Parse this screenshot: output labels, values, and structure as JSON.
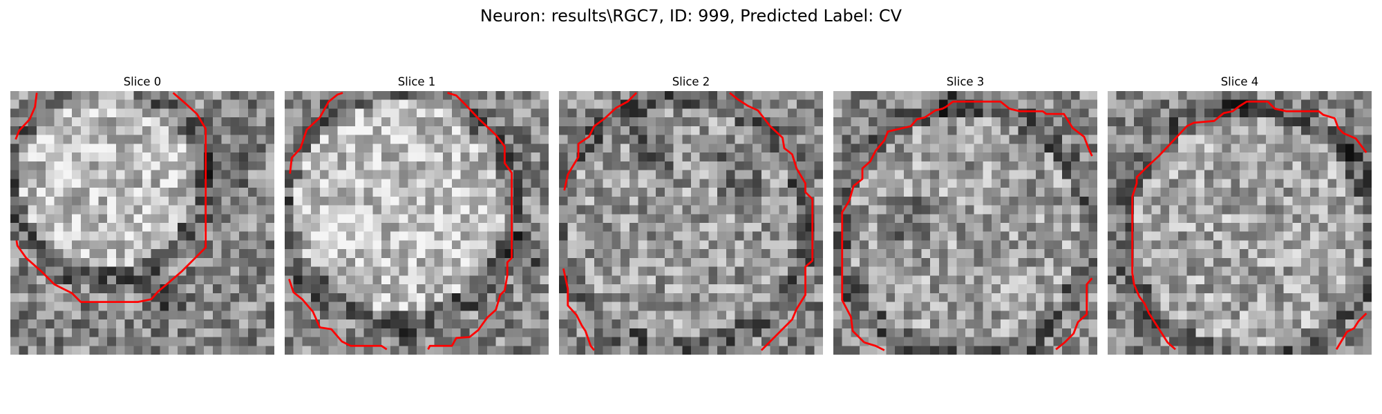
{
  "figure": {
    "title": "Neuron: results\\RGC7, ID: 999, Predicted Label: CV"
  },
  "panels": [
    {
      "title": "Slice 0"
    },
    {
      "title": "Slice 1"
    },
    {
      "title": "Slice 2"
    },
    {
      "title": "Slice 3"
    },
    {
      "title": "Slice 4"
    }
  ],
  "colors": {
    "contour": "#ff0000",
    "background": "#ffffff"
  }
}
